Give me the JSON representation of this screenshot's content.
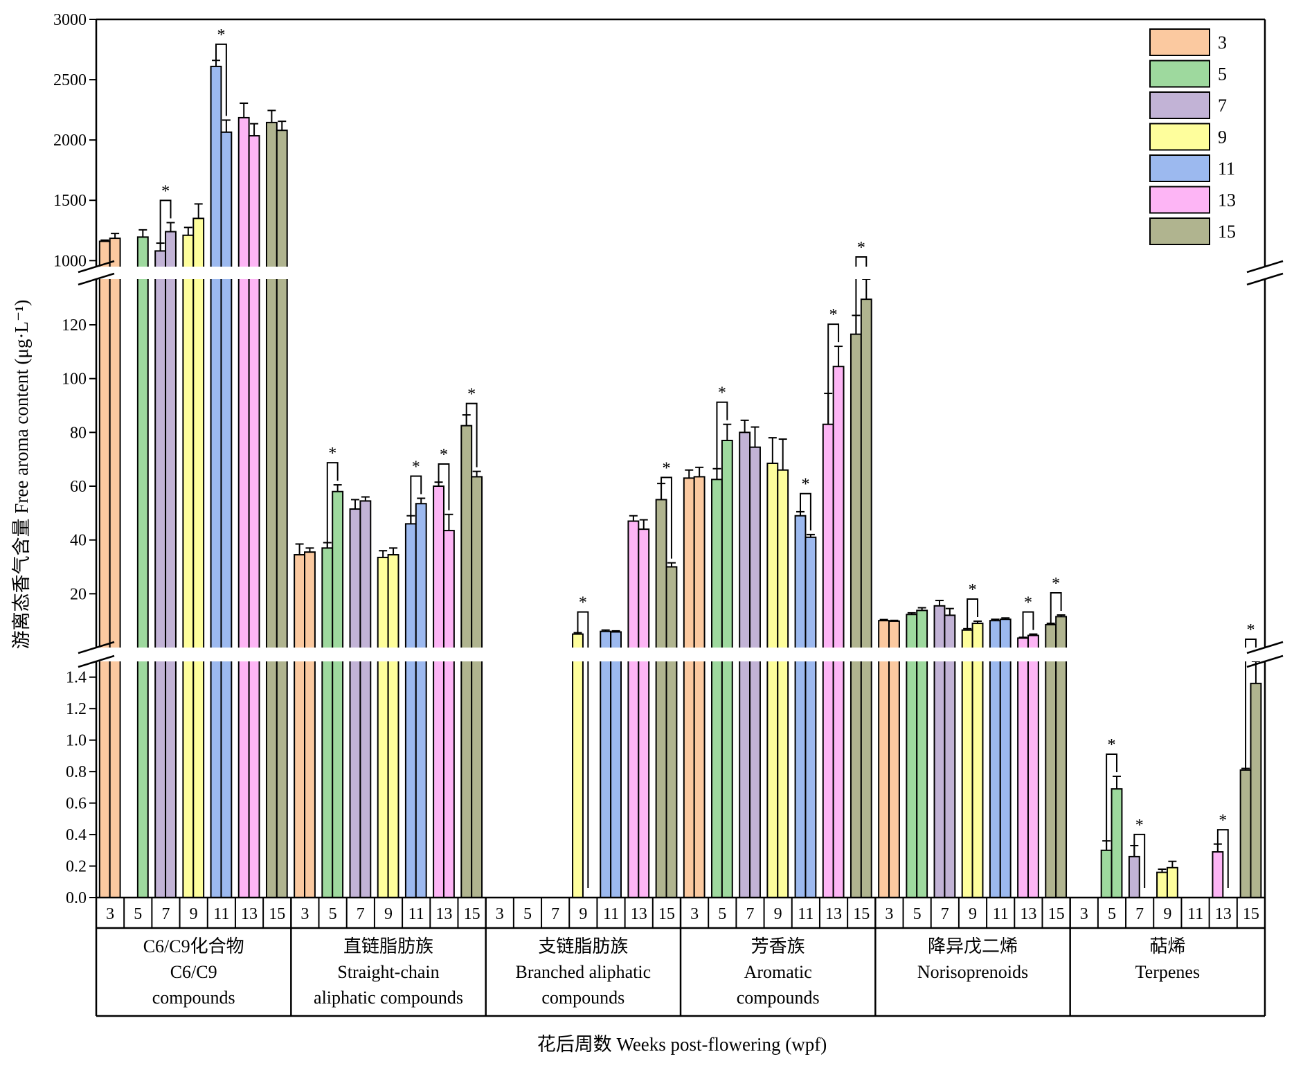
{
  "chart_data": {
    "type": "bar",
    "ylabel": "游离态香气含量 Free aroma content (μg·L⁻¹)",
    "xlabel": "花后周数 Weeks post-flowering (wpf)",
    "weeks": [
      "3",
      "5",
      "7",
      "9",
      "11",
      "13",
      "15"
    ],
    "colors": [
      "#FBC9A0",
      "#9ED99E",
      "#C2B3D6",
      "#FEFE9C",
      "#9CB9EF",
      "#FDB5F5",
      "#B0B48F"
    ],
    "legend_position": "top-right",
    "y_axis": {
      "broken": true,
      "segments": [
        {
          "range": [
            0,
            1.5
          ],
          "ticks": [
            "0.0",
            "0.2",
            "0.4",
            "0.6",
            "0.8",
            "1.0",
            "1.2",
            "1.4"
          ]
        },
        {
          "range": [
            0,
            137
          ],
          "ticks": [
            "20",
            "40",
            "60",
            "80",
            "100",
            "120"
          ]
        },
        {
          "range": [
            950,
            3000
          ],
          "ticks": [
            "1000",
            "1500",
            "2000",
            "2500",
            "3000"
          ]
        }
      ]
    },
    "groups": [
      {
        "cn": "C6/C9化合物",
        "en": [
          "C6/C9",
          "compounds"
        ],
        "bars": [
          {
            "week": 0,
            "sub": 0,
            "value": 1160,
            "err": 10
          },
          {
            "week": 0,
            "sub": 1,
            "value": 1185,
            "err": 40
          },
          {
            "week": 1,
            "sub": 1,
            "value": 1195,
            "err": 60
          },
          {
            "week": 2,
            "sub": 0,
            "value": 1080,
            "err": 65
          },
          {
            "week": 2,
            "sub": 1,
            "value": 1240,
            "err": 75
          },
          {
            "week": 3,
            "sub": 0,
            "value": 1210,
            "err": 65
          },
          {
            "week": 3,
            "sub": 1,
            "value": 1350,
            "err": 120
          },
          {
            "week": 4,
            "sub": 0,
            "value": 2610,
            "err": 50
          },
          {
            "week": 4,
            "sub": 1,
            "value": 2065,
            "err": 100
          },
          {
            "week": 5,
            "sub": 0,
            "value": 2185,
            "err": 120
          },
          {
            "week": 5,
            "sub": 1,
            "value": 2035,
            "err": 100
          },
          {
            "week": 6,
            "sub": 0,
            "value": 2145,
            "err": 100
          },
          {
            "week": 6,
            "sub": 1,
            "value": 2080,
            "err": 75
          }
        ],
        "sig": [
          [
            2,
            1
          ],
          [
            4,
            0
          ]
        ]
      },
      {
        "cn": "直链脂肪族",
        "en": [
          "Straight-chain",
          "aliphatic compounds"
        ],
        "bars": [
          {
            "week": 0,
            "sub": 0,
            "value": 34.5,
            "err": 4
          },
          {
            "week": 0,
            "sub": 1,
            "value": 35.5,
            "err": 1.5
          },
          {
            "week": 1,
            "sub": 0,
            "value": 37,
            "err": 2
          },
          {
            "week": 1,
            "sub": 1,
            "value": 58,
            "err": 2.5
          },
          {
            "week": 2,
            "sub": 0,
            "value": 51.5,
            "err": 3.5
          },
          {
            "week": 2,
            "sub": 1,
            "value": 54.5,
            "err": 1.5
          },
          {
            "week": 3,
            "sub": 0,
            "value": 33.5,
            "err": 2.5
          },
          {
            "week": 3,
            "sub": 1,
            "value": 34.5,
            "err": 2.5
          },
          {
            "week": 4,
            "sub": 0,
            "value": 46,
            "err": 3
          },
          {
            "week": 4,
            "sub": 1,
            "value": 53.5,
            "err": 2
          },
          {
            "week": 5,
            "sub": 0,
            "value": 60,
            "err": 1.5
          },
          {
            "week": 5,
            "sub": 1,
            "value": 43.5,
            "err": 6
          },
          {
            "week": 6,
            "sub": 0,
            "value": 82.5,
            "err": 4
          },
          {
            "week": 6,
            "sub": 1,
            "value": 63.5,
            "err": 2
          }
        ],
        "sig": [
          [
            1,
            0
          ],
          [
            4,
            0
          ],
          [
            5,
            0
          ],
          [
            6,
            0
          ]
        ]
      },
      {
        "cn": "支链脂肪族",
        "en": [
          "Branched aliphatic",
          "compounds"
        ],
        "bars": [
          {
            "week": 3,
            "sub": 0,
            "value": 5,
            "err": 0.5
          },
          {
            "week": 4,
            "sub": 0,
            "value": 6,
            "err": 0.5
          },
          {
            "week": 4,
            "sub": 1,
            "value": 5.8,
            "err": 0.4
          },
          {
            "week": 5,
            "sub": 0,
            "value": 47,
            "err": 2
          },
          {
            "week": 5,
            "sub": 1,
            "value": 44,
            "err": 3.5
          },
          {
            "week": 6,
            "sub": 0,
            "value": 55,
            "err": 6
          },
          {
            "week": 6,
            "sub": 1,
            "value": 30,
            "err": 1.5
          }
        ],
        "sig": [
          [
            3,
            0
          ],
          [
            6,
            0
          ]
        ]
      },
      {
        "cn": "芳香族",
        "en": [
          "Aromatic",
          "compounds"
        ],
        "bars": [
          {
            "week": 0,
            "sub": 0,
            "value": 63,
            "err": 3
          },
          {
            "week": 0,
            "sub": 1,
            "value": 63.5,
            "err": 3.5
          },
          {
            "week": 1,
            "sub": 0,
            "value": 62.5,
            "err": 4
          },
          {
            "week": 1,
            "sub": 1,
            "value": 77,
            "err": 6
          },
          {
            "week": 2,
            "sub": 0,
            "value": 80,
            "err": 4.5
          },
          {
            "week": 2,
            "sub": 1,
            "value": 74.5,
            "err": 7.5
          },
          {
            "week": 3,
            "sub": 0,
            "value": 68.5,
            "err": 9.5
          },
          {
            "week": 3,
            "sub": 1,
            "value": 66,
            "err": 11.5
          },
          {
            "week": 4,
            "sub": 0,
            "value": 49,
            "err": 1.5
          },
          {
            "week": 4,
            "sub": 1,
            "value": 41,
            "err": 1
          },
          {
            "week": 5,
            "sub": 0,
            "value": 83,
            "err": 11.5
          },
          {
            "week": 5,
            "sub": 1,
            "value": 104.5,
            "err": 7.5
          },
          {
            "week": 6,
            "sub": 0,
            "value": 116.5,
            "err": 7
          },
          {
            "week": 6,
            "sub": 1,
            "value": 129.5,
            "err": 7.5
          }
        ],
        "sig": [
          [
            1,
            0
          ],
          [
            4,
            0
          ],
          [
            5,
            0
          ],
          [
            6,
            0
          ]
        ]
      },
      {
        "cn": "降异戊二烯",
        "en": [
          "Norisoprenoids"
        ],
        "bars": [
          {
            "week": 0,
            "sub": 0,
            "value": 10,
            "err": 0.4
          },
          {
            "week": 0,
            "sub": 1,
            "value": 9.8,
            "err": 0.3
          },
          {
            "week": 1,
            "sub": 0,
            "value": 12.3,
            "err": 0.6
          },
          {
            "week": 1,
            "sub": 1,
            "value": 13.8,
            "err": 1
          },
          {
            "week": 2,
            "sub": 0,
            "value": 15.5,
            "err": 2
          },
          {
            "week": 2,
            "sub": 1,
            "value": 12,
            "err": 2.5
          },
          {
            "week": 3,
            "sub": 0,
            "value": 6.5,
            "err": 0.5
          },
          {
            "week": 3,
            "sub": 1,
            "value": 9,
            "err": 0.8
          },
          {
            "week": 4,
            "sub": 0,
            "value": 10,
            "err": 0.5
          },
          {
            "week": 4,
            "sub": 1,
            "value": 10.5,
            "err": 0.5
          },
          {
            "week": 5,
            "sub": 0,
            "value": 3.5,
            "err": 0.3
          },
          {
            "week": 5,
            "sub": 1,
            "value": 4.5,
            "err": 0.5
          },
          {
            "week": 6,
            "sub": 0,
            "value": 8.5,
            "err": 0.5
          },
          {
            "week": 6,
            "sub": 1,
            "value": 11.5,
            "err": 0.6
          }
        ],
        "sig": [
          [
            3,
            0
          ],
          [
            5,
            0
          ],
          [
            6,
            0
          ]
        ]
      },
      {
        "cn": "萜烯",
        "en": [
          "Terpenes"
        ],
        "bars": [
          {
            "week": 1,
            "sub": 0,
            "value": 0.3,
            "err": 0.06
          },
          {
            "week": 1,
            "sub": 1,
            "value": 0.69,
            "err": 0.08
          },
          {
            "week": 2,
            "sub": 0,
            "value": 0.26,
            "err": 0.07
          },
          {
            "week": 3,
            "sub": 0,
            "value": 0.16,
            "err": 0.02
          },
          {
            "week": 3,
            "sub": 1,
            "value": 0.19,
            "err": 0.04
          },
          {
            "week": 5,
            "sub": 0,
            "value": 0.29,
            "err": 0.05
          },
          {
            "week": 6,
            "sub": 0,
            "value": 0.81,
            "err": 0.01
          },
          {
            "week": 6,
            "sub": 1,
            "value": 1.36,
            "err": 0.14
          }
        ],
        "sig": [
          [
            1,
            0
          ],
          [
            2,
            0
          ],
          [
            5,
            0
          ],
          [
            6,
            0
          ]
        ]
      }
    ],
    "significance_marker": "*"
  }
}
